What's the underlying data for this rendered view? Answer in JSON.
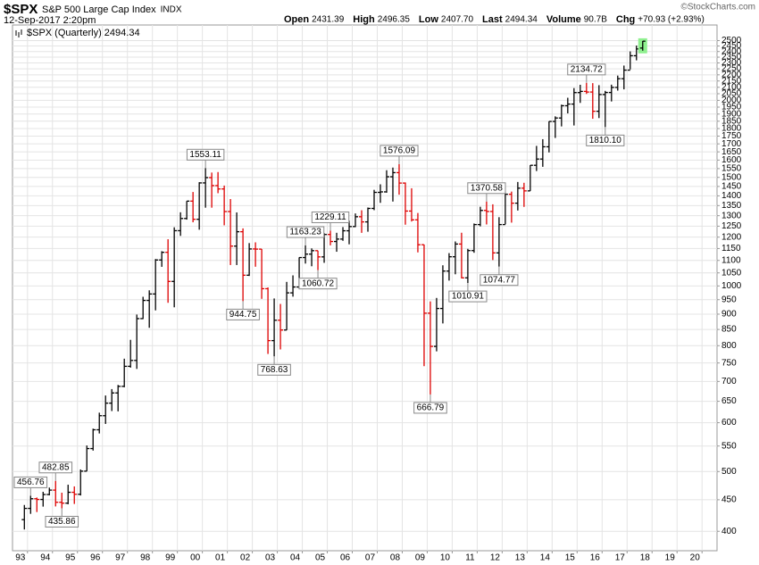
{
  "header": {
    "symbol": "$SPX",
    "name": "S&P 500 Large Cap Index",
    "exchange": "INDX",
    "date": "12-Sep-2017 2:20pm",
    "credit": "©StockCharts.com",
    "stats": [
      {
        "label": "Open",
        "value": "2431.39"
      },
      {
        "label": "High",
        "value": "2496.35"
      },
      {
        "label": "Low",
        "value": "2407.70"
      },
      {
        "label": "Last",
        "value": "2494.34"
      },
      {
        "label": "Volume",
        "value": "90.7B"
      },
      {
        "label": "Chg",
        "value": "+70.93 (+2.93%)"
      }
    ]
  },
  "chart_data": {
    "type": "ohlc",
    "legend": "$SPX (Quarterly) 2494.34",
    "up_color": "#000000",
    "down_color": "#dd0000",
    "highlight_color": "#8ff08f",
    "log_scale": true,
    "grid": true,
    "xlim": [
      1992.4,
      2020.6
    ],
    "ylim": [
      372,
      2650
    ],
    "xticks": [
      {
        "value": 1993,
        "label": "93"
      },
      {
        "value": 1994,
        "label": "94"
      },
      {
        "value": 1995,
        "label": "95"
      },
      {
        "value": 1996,
        "label": "96"
      },
      {
        "value": 1997,
        "label": "97"
      },
      {
        "value": 1998,
        "label": "98"
      },
      {
        "value": 1999,
        "label": "99"
      },
      {
        "value": 2000,
        "label": "00"
      },
      {
        "value": 2001,
        "label": "01"
      },
      {
        "value": 2002,
        "label": "02"
      },
      {
        "value": 2003,
        "label": "03"
      },
      {
        "value": 2004,
        "label": "04"
      },
      {
        "value": 2005,
        "label": "05"
      },
      {
        "value": 2006,
        "label": "06"
      },
      {
        "value": 2007,
        "label": "07"
      },
      {
        "value": 2008,
        "label": "08"
      },
      {
        "value": 2009,
        "label": "09"
      },
      {
        "value": 2010,
        "label": "10"
      },
      {
        "value": 2011,
        "label": "11"
      },
      {
        "value": 2012,
        "label": "12"
      },
      {
        "value": 2013,
        "label": "13"
      },
      {
        "value": 2014,
        "label": "14"
      },
      {
        "value": 2015,
        "label": "15"
      },
      {
        "value": 2016,
        "label": "16"
      },
      {
        "value": 2017,
        "label": "17"
      },
      {
        "value": 2018,
        "label": "18"
      },
      {
        "value": 2019,
        "label": "19"
      },
      {
        "value": 2020,
        "label": "20"
      }
    ],
    "yticks": [
      400,
      450,
      500,
      550,
      600,
      650,
      700,
      750,
      800,
      850,
      900,
      950,
      1000,
      1050,
      1100,
      1150,
      1200,
      1250,
      1300,
      1350,
      1400,
      1450,
      1500,
      1550,
      1600,
      1650,
      1700,
      1750,
      1800,
      1850,
      1900,
      1950,
      2000,
      2050,
      2100,
      2150,
      2200,
      2250,
      2300,
      2350,
      2400,
      2450,
      2500
    ],
    "x": [
      1992.875,
      1993.125,
      1993.375,
      1993.625,
      1993.875,
      1994.125,
      1994.375,
      1994.625,
      1994.875,
      1995.125,
      1995.375,
      1995.625,
      1995.875,
      1996.125,
      1996.375,
      1996.625,
      1996.875,
      1997.125,
      1997.375,
      1997.625,
      1997.875,
      1998.125,
      1998.375,
      1998.625,
      1998.875,
      1999.125,
      1999.375,
      1999.625,
      1999.875,
      2000.125,
      2000.375,
      2000.625,
      2000.875,
      2001.125,
      2001.375,
      2001.625,
      2001.875,
      2002.125,
      2002.375,
      2002.625,
      2002.875,
      2003.125,
      2003.375,
      2003.625,
      2003.875,
      2004.125,
      2004.375,
      2004.625,
      2004.875,
      2005.125,
      2005.375,
      2005.625,
      2005.875,
      2006.125,
      2006.375,
      2006.625,
      2006.875,
      2007.125,
      2007.375,
      2007.625,
      2007.875,
      2008.125,
      2008.375,
      2008.625,
      2008.875,
      2009.125,
      2009.375,
      2009.625,
      2009.875,
      2010.125,
      2010.375,
      2010.625,
      2010.875,
      2011.125,
      2011.375,
      2011.625,
      2011.875,
      2012.125,
      2012.375,
      2012.625,
      2012.875,
      2013.125,
      2013.375,
      2013.625,
      2013.875,
      2014.125,
      2014.375,
      2014.625,
      2014.875,
      2015.125,
      2015.375,
      2015.625,
      2015.875,
      2016.125,
      2016.375,
      2016.625,
      2016.875,
      2017.125,
      2017.375,
      2017.625
    ],
    "open": [
      417.8,
      435.7,
      451.7,
      450.5,
      458.9,
      466.5,
      445.8,
      444.3,
      462.7,
      459.3,
      500.7,
      544.8,
      584.4,
      615.9,
      645.5,
      670.6,
      687.3,
      740.7,
      757.1,
      885.1,
      947.3,
      970.4,
      1101.8,
      1133.8,
      1017.0,
      1229.2,
      1286.4,
      1372.7,
      1282.7,
      1469.3,
      1498.6,
      1454.6,
      1436.5,
      1320.3,
      1160.3,
      1224.4,
      1040.9,
      1148.1,
      1147.4,
      989.8,
      815.3,
      879.8,
      848.2,
      974.5,
      996.0,
      1111.9,
      1126.2,
      1140.8,
      1114.6,
      1211.9,
      1180.6,
      1191.3,
      1228.8,
      1248.3,
      1294.8,
      1270.2,
      1335.8,
      1418.3,
      1420.9,
      1503.4,
      1526.8,
      1468.4,
      1322.7,
      1280.0,
      1166.4,
      903.3,
      797.9,
      919.3,
      1057.1,
      1115.1,
      1169.4,
      1030.7,
      1141.2,
      1257.6,
      1325.8,
      1320.6,
      1131.4,
      1257.6,
      1408.5,
      1362.2,
      1440.7,
      1426.2,
      1569.2,
      1606.3,
      1681.6,
      1848.4,
      1872.3,
      1960.2,
      1972.3,
      2058.9,
      2067.9,
      2063.1,
      1920.0,
      2043.9,
      2059.7,
      2098.9,
      2168.3,
      2238.8,
      2362.7,
      2431.39
    ],
    "high": [
      441.3,
      456.76,
      453.8,
      463.6,
      470.9,
      482.85,
      462.0,
      476.0,
      473.0,
      503.9,
      551.1,
      586.8,
      622.9,
      664.2,
      680.3,
      690.9,
      762.1,
      817.7,
      898.7,
      960.3,
      983.8,
      1105.7,
      1138.5,
      1190.6,
      1244.9,
      1316.6,
      1372.9,
      1420.3,
      1473.1,
      1553.11,
      1527.2,
      1530.1,
      1454.8,
      1383.4,
      1316.0,
      1239.8,
      1173.6,
      1176.9,
      1147.8,
      994.5,
      954.3,
      935.0,
      1015.3,
      1040.3,
      1112.6,
      1163.23,
      1150.6,
      1140.8,
      1217.9,
      1229.11,
      1219.6,
      1245.9,
      1275.8,
      1310.9,
      1326.7,
      1340.3,
      1431.8,
      1461.6,
      1540.6,
      1555.9,
      1576.09,
      1471.8,
      1440.2,
      1313.2,
      1167.0,
      943.9,
      956.2,
      1080.2,
      1130.4,
      1180.7,
      1219.8,
      1148.7,
      1262.6,
      1344.1,
      1370.58,
      1356.5,
      1292.7,
      1419.2,
      1422.4,
      1474.5,
      1470.0,
      1570.3,
      1687.2,
      1729.9,
      1849.4,
      1884.0,
      1968.2,
      2019.3,
      2093.6,
      2119.6,
      2134.72,
      2132.8,
      2116.5,
      2072.2,
      2120.6,
      2193.8,
      2277.5,
      2400.98,
      2453.8,
      2496.35
    ],
    "low": [
      402.7,
      426.9,
      429.8,
      438.6,
      457.5,
      438.9,
      435.86,
      442.5,
      443.0,
      457.2,
      500.7,
      540.7,
      576.4,
      597.3,
      626.7,
      626.0,
      684.9,
      737.0,
      733.5,
      883.6,
      855.3,
      912.8,
      1074.0,
      939.0,
      923.3,
      1205.5,
      1281.0,
      1268.4,
      1233.7,
      1339.4,
      1339.4,
      1413.9,
      1254.1,
      1081.2,
      1081.2,
      944.75,
      1038.0,
      1074.4,
      952.9,
      775.7,
      768.63,
      788.9,
      847.9,
      960.8,
      990.4,
      1087.1,
      1076.3,
      1060.72,
      1090.2,
      1163.7,
      1136.2,
      1183.6,
      1168.2,
      1245.7,
      1219.3,
      1224.5,
      1327.1,
      1363.9,
      1416.4,
      1370.6,
      1406.1,
      1256.98,
      1272.0,
      1133.5,
      741.0,
      666.79,
      783.3,
      869.3,
      1020.2,
      1044.5,
      1028.3,
      1010.91,
      1131.9,
      1249.1,
      1258.1,
      1101.5,
      1074.77,
      1258.9,
      1266.7,
      1325.4,
      1343.4,
      1426.2,
      1536.0,
      1560.3,
      1646.5,
      1737.9,
      1814.4,
      1904.8,
      1820.7,
      1980.9,
      2048.4,
      1867.0,
      1871.9,
      1810.1,
      1991.7,
      2074.0,
      2083.8,
      2245.1,
      2322.3,
      2407.7
    ],
    "close": [
      435.7,
      451.7,
      450.5,
      458.9,
      466.5,
      445.8,
      444.3,
      462.7,
      459.3,
      500.7,
      544.8,
      584.4,
      615.9,
      645.5,
      670.6,
      687.3,
      740.7,
      757.1,
      885.1,
      947.3,
      970.4,
      1101.8,
      1133.8,
      1017.0,
      1229.2,
      1286.4,
      1372.7,
      1282.7,
      1469.3,
      1498.6,
      1454.6,
      1436.5,
      1320.3,
      1160.3,
      1224.4,
      1040.9,
      1148.1,
      1147.4,
      989.8,
      815.3,
      879.8,
      848.2,
      974.5,
      996.0,
      1111.9,
      1126.2,
      1140.8,
      1114.6,
      1211.9,
      1180.6,
      1191.3,
      1228.8,
      1248.3,
      1294.8,
      1270.2,
      1335.8,
      1418.3,
      1420.9,
      1503.4,
      1526.8,
      1468.4,
      1322.7,
      1280.0,
      1166.4,
      903.3,
      797.9,
      919.3,
      1057.1,
      1115.1,
      1169.4,
      1030.7,
      1141.2,
      1257.6,
      1325.8,
      1320.6,
      1131.4,
      1257.6,
      1408.5,
      1362.2,
      1440.7,
      1426.2,
      1569.2,
      1606.3,
      1681.6,
      1848.4,
      1872.3,
      1960.2,
      1972.3,
      2058.9,
      2067.9,
      2063.1,
      1920.0,
      2043.9,
      2059.7,
      2098.9,
      2168.3,
      2238.8,
      2362.7,
      2423.4,
      2494.34
    ],
    "annotations": [
      {
        "x": 1993.125,
        "value": 456.76,
        "label": "456.76",
        "side": "high"
      },
      {
        "x": 1994.125,
        "value": 482.85,
        "label": "482.85",
        "side": "high"
      },
      {
        "x": 1994.375,
        "value": 435.86,
        "label": "435.86",
        "side": "low"
      },
      {
        "x": 2000.125,
        "value": 1553.11,
        "label": "1553.11",
        "side": "high"
      },
      {
        "x": 2001.625,
        "value": 944.75,
        "label": "944.75",
        "side": "low"
      },
      {
        "x": 2002.875,
        "value": 768.63,
        "label": "768.63",
        "side": "low"
      },
      {
        "x": 2004.125,
        "value": 1163.23,
        "label": "1163.23",
        "side": "high"
      },
      {
        "x": 2004.625,
        "value": 1060.72,
        "label": "1060.72",
        "side": "low"
      },
      {
        "x": 2005.125,
        "value": 1229.11,
        "label": "1229.11",
        "side": "high"
      },
      {
        "x": 2007.875,
        "value": 1576.09,
        "label": "1576.09",
        "side": "high"
      },
      {
        "x": 2009.125,
        "value": 666.79,
        "label": "666.79",
        "side": "low"
      },
      {
        "x": 2010.625,
        "value": 1010.91,
        "label": "1010.91",
        "side": "low"
      },
      {
        "x": 2011.375,
        "value": 1370.58,
        "label": "1370.58",
        "side": "high"
      },
      {
        "x": 2011.875,
        "value": 1074.77,
        "label": "1074.77",
        "side": "low"
      },
      {
        "x": 2015.375,
        "value": 2134.72,
        "label": "2134.72",
        "side": "high"
      },
      {
        "x": 2016.125,
        "value": 1810.1,
        "label": "1810.10",
        "side": "low"
      }
    ]
  }
}
